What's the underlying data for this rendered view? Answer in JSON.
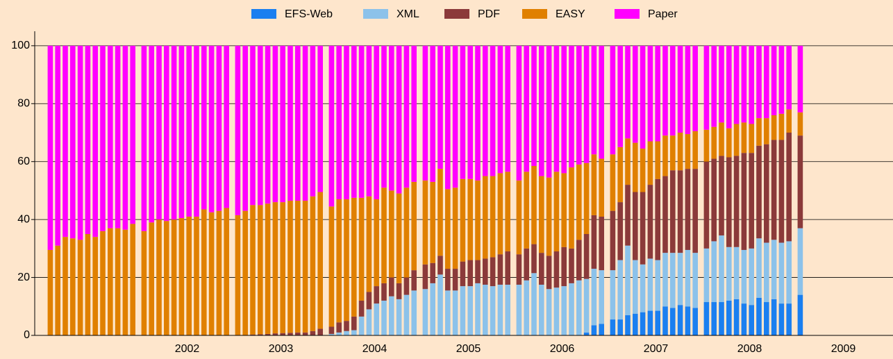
{
  "chart_data": {
    "type": "stacked_bar",
    "categories": [
      null,
      null,
      null,
      null,
      null,
      null,
      null,
      null,
      null,
      null,
      null,
      null,
      null,
      null,
      null,
      null,
      null,
      null,
      null,
      null,
      null,
      null,
      null,
      null,
      null,
      null,
      null,
      null,
      null,
      null,
      null,
      null,
      null,
      null,
      null,
      null,
      null,
      null,
      null,
      null,
      null,
      null,
      null,
      null,
      null,
      null,
      null,
      null,
      null,
      null,
      null,
      null,
      null,
      null,
      null,
      null,
      null,
      null,
      null,
      null,
      null,
      null,
      null,
      null,
      null,
      null,
      null,
      null,
      null,
      null,
      null,
      null,
      null,
      null,
      null,
      null,
      null,
      null,
      null,
      null,
      null,
      null,
      null,
      null,
      null,
      null,
      null,
      null,
      null,
      null,
      null,
      null,
      null,
      null,
      null,
      null,
      null
    ],
    "xlim": [
      2001,
      2010
    ],
    "xticks": [
      {
        "value": 2002.5,
        "label": "2002"
      },
      {
        "value": 2003.5,
        "label": "2003"
      },
      {
        "value": 2004.5,
        "label": "2004"
      },
      {
        "value": 2005.5,
        "label": "2005"
      },
      {
        "value": 2006.5,
        "label": "2006"
      },
      {
        "value": 2007.5,
        "label": "2007"
      },
      {
        "value": 2008.5,
        "label": "2008"
      },
      {
        "value": 2009.5,
        "label": "2009"
      }
    ],
    "ylim": [
      0,
      105
    ],
    "yticks": [
      0,
      20,
      40,
      60,
      80,
      100
    ],
    "grid": true,
    "legend": "top",
    "series": [
      {
        "name": "EFS-Web",
        "color": "#1a7ff0",
        "values": [
          0,
          0,
          0,
          0,
          0,
          0,
          0,
          0,
          0,
          0,
          0,
          0,
          0,
          0,
          0,
          0,
          0,
          0,
          0,
          0,
          0,
          0,
          0,
          0,
          0,
          0,
          0,
          0,
          0,
          0,
          0,
          0,
          0,
          0,
          0,
          0,
          0,
          0,
          0,
          0,
          0,
          0,
          0,
          0,
          0,
          0,
          0,
          0,
          0,
          0,
          0,
          0,
          0,
          0,
          0,
          0,
          0,
          0,
          0,
          0,
          0,
          0,
          0,
          0,
          0,
          0,
          0,
          0,
          0,
          1,
          3.5,
          4,
          5.5,
          5.5,
          7,
          7.5,
          8,
          8.5,
          8.5,
          10,
          9.5,
          10.5,
          10,
          9.5,
          11.5,
          11.5,
          11.5,
          12,
          12.5,
          11,
          10.5,
          13,
          11.5,
          12.5,
          11,
          11,
          14
        ]
      },
      {
        "name": "XML",
        "color": "#8cc2ea",
        "values": [
          0,
          0,
          0,
          0,
          0,
          0,
          0,
          0,
          0,
          0,
          0,
          0,
          0,
          0,
          0,
          0,
          0,
          0,
          0,
          0,
          0,
          0,
          0,
          0,
          0,
          0,
          0,
          0,
          0,
          0,
          0,
          0,
          0,
          0,
          0,
          0,
          0.5,
          1,
          1.5,
          1.8,
          6.5,
          9,
          11,
          12,
          13.5,
          12.5,
          14,
          15.5,
          16,
          18,
          21,
          15.5,
          15.5,
          17,
          17,
          18,
          17.5,
          17,
          17.5,
          17.5,
          17.5,
          19,
          21.5,
          17.5,
          16,
          16.5,
          17,
          18,
          19,
          18.5,
          19.5,
          18.5,
          17,
          20.5,
          24,
          18.5,
          16.5,
          18,
          17.5,
          18.5,
          19,
          18,
          19.5,
          19,
          18.5,
          21,
          23,
          18.5,
          18,
          18.5,
          19.5,
          20.5,
          20.5,
          20.5,
          21,
          21.5,
          23
        ]
      },
      {
        "name": "PDF",
        "color": "#8b3a3a",
        "values": [
          0,
          0,
          0,
          0,
          0,
          0,
          0,
          0,
          0,
          0,
          0,
          0,
          0,
          0,
          0,
          0,
          0,
          0,
          0,
          0,
          0,
          0,
          0,
          0,
          0,
          0,
          0.3,
          0.4,
          0.5,
          0.7,
          0.8,
          0.9,
          1,
          1,
          1.5,
          2.3,
          2.5,
          3.5,
          3.5,
          4.7,
          5.5,
          6,
          6,
          6,
          6.5,
          5.5,
          6,
          7,
          8.5,
          7,
          6.5,
          7.5,
          7.5,
          8.5,
          9,
          8,
          9,
          10,
          10.5,
          11.5,
          10.5,
          11,
          10,
          11,
          11.5,
          12.5,
          13.5,
          12,
          14,
          15.5,
          18.5,
          18.5,
          20.5,
          20,
          21,
          23.5,
          25,
          25.5,
          28,
          26.5,
          28.5,
          28.5,
          28,
          29,
          30,
          28.5,
          27.5,
          31,
          31.5,
          33.5,
          33,
          32,
          34,
          34.5,
          35.5,
          37.5,
          32
        ]
      },
      {
        "name": "EASY",
        "color": "#e08000",
        "values": [
          29.5,
          31,
          34,
          33.5,
          33,
          35,
          34,
          36,
          37,
          37,
          36.5,
          38.5,
          36,
          39,
          40,
          39.5,
          40,
          40.5,
          41,
          41,
          43.5,
          42.5,
          43,
          44,
          41.5,
          43,
          44.7,
          44.6,
          45,
          45.3,
          45.2,
          45.6,
          45.5,
          45.5,
          46.5,
          47.2,
          41.5,
          42.5,
          42,
          41,
          35.5,
          33,
          30,
          33,
          30,
          31,
          31,
          30.5,
          29,
          28,
          30,
          27.5,
          28,
          28.5,
          28,
          27.5,
          28.5,
          28,
          28,
          27.5,
          25.5,
          26.5,
          27,
          26.5,
          27,
          27.5,
          25.5,
          28,
          26,
          24.5,
          21,
          20,
          19.5,
          19,
          16,
          17,
          15,
          15,
          13,
          14,
          12,
          13,
          12,
          13,
          11,
          11,
          11.5,
          10,
          11,
          10.5,
          10,
          9.5,
          9,
          8.5,
          9,
          8,
          8
        ]
      },
      {
        "name": "Paper",
        "color": "#ff00ff",
        "values": [
          70.5,
          69,
          66,
          66.5,
          67,
          65,
          66,
          64,
          63,
          63,
          63.5,
          61.5,
          64,
          61,
          60,
          60.5,
          60,
          59.5,
          59,
          59,
          56.5,
          57.5,
          57,
          56,
          58.5,
          57,
          55,
          55,
          54.5,
          54,
          54,
          53.5,
          53.5,
          53.5,
          52,
          50.5,
          55.5,
          53,
          53,
          52.5,
          52.5,
          52,
          53,
          49,
          50,
          51,
          49,
          47,
          46.5,
          47,
          42.5,
          49.5,
          49,
          46,
          46,
          46.5,
          45,
          45,
          44,
          43.5,
          46.5,
          43.5,
          41.5,
          45,
          45.5,
          43.5,
          44,
          42,
          41,
          40.5,
          37.5,
          39,
          37.5,
          35,
          32,
          33.5,
          35.5,
          33,
          33,
          31,
          31,
          30,
          30.5,
          29.5,
          29,
          28,
          26.5,
          28.5,
          27,
          26.5,
          27,
          25,
          25,
          24,
          23.5,
          22,
          23
        ]
      }
    ]
  }
}
